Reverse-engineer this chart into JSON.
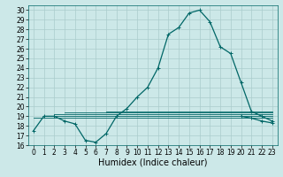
{
  "background_color": "#cce8e8",
  "grid_color": "#aacccc",
  "line_color": "#006666",
  "xlabel": "Humidex (Indice chaleur)",
  "xlim": [
    -0.5,
    23.5
  ],
  "ylim": [
    16,
    30.5
  ],
  "yticks": [
    16,
    17,
    18,
    19,
    20,
    21,
    22,
    23,
    24,
    25,
    26,
    27,
    28,
    29,
    30
  ],
  "xticks": [
    0,
    1,
    2,
    3,
    4,
    5,
    6,
    7,
    8,
    9,
    10,
    11,
    12,
    13,
    14,
    15,
    16,
    17,
    18,
    19,
    20,
    21,
    22,
    23
  ],
  "main_x": [
    0,
    1,
    2,
    3,
    4,
    5,
    6,
    7,
    8,
    9,
    10,
    11,
    12,
    13,
    14,
    15,
    16,
    17,
    18,
    19,
    20,
    21,
    22,
    23
  ],
  "main_y": [
    17.5,
    19.0,
    19.0,
    18.5,
    18.2,
    16.5,
    16.3,
    17.2,
    19.0,
    19.8,
    21.0,
    22.0,
    24.0,
    27.5,
    28.2,
    29.7,
    30.0,
    28.8,
    26.2,
    25.5,
    22.5,
    19.5,
    19.0,
    18.5
  ],
  "flat_lines": [
    {
      "x": [
        0,
        23
      ],
      "y": 18.8
    },
    {
      "x": [
        1,
        23
      ],
      "y": 19.0
    },
    {
      "x": [
        2,
        23
      ],
      "y": 19.2
    },
    {
      "x": [
        3,
        23
      ],
      "y": 19.4
    },
    {
      "x": [
        7,
        23
      ],
      "y": 19.5
    }
  ],
  "end_curve_x": [
    20,
    21,
    22,
    23
  ],
  "end_curve_y": [
    19.0,
    18.8,
    18.5,
    18.3
  ],
  "marker": "+",
  "marker_size": 3,
  "linewidth": 0.9,
  "xlabel_fontsize": 7,
  "tick_fontsize": 5.5
}
